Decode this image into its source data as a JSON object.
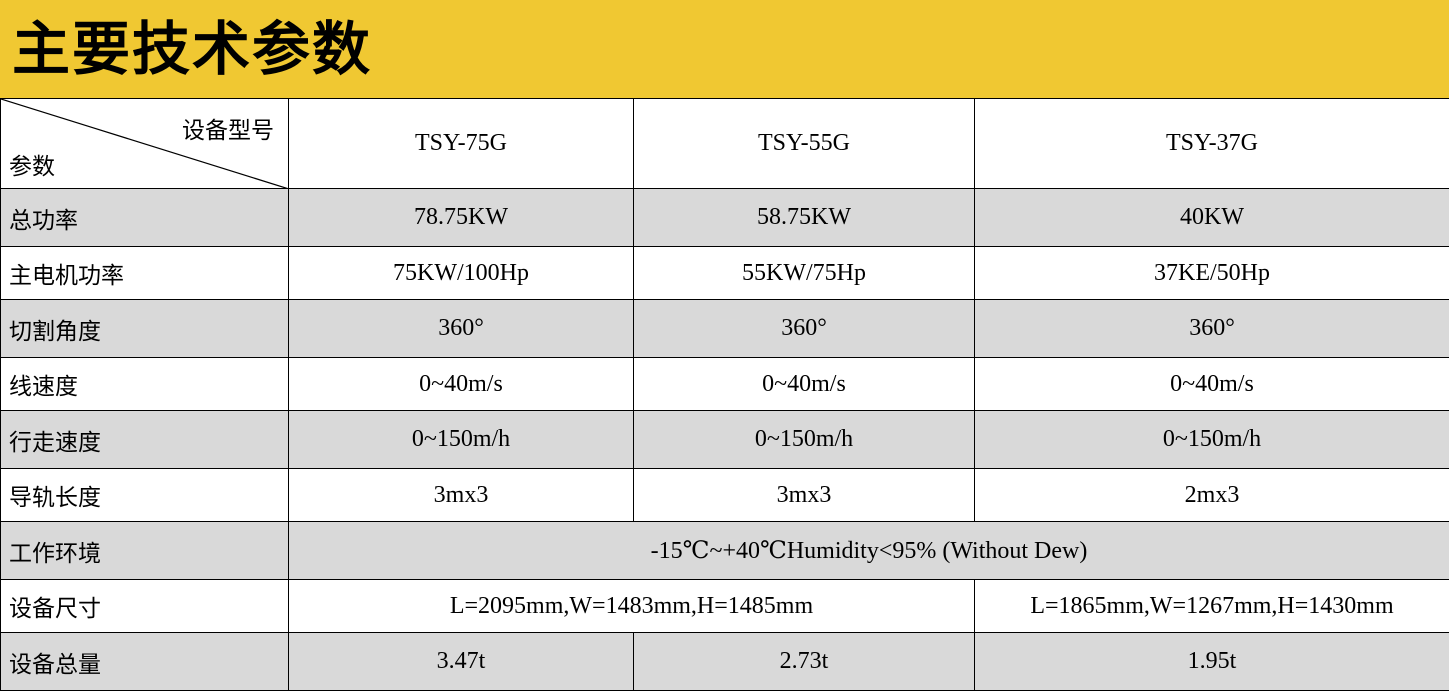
{
  "title": "主要技术参数",
  "colors": {
    "banner": "#F0C832",
    "row_alt": "#D9D9D9"
  },
  "header": {
    "corner_top": "设备型号",
    "corner_bottom": "参数",
    "models": [
      "TSY-75G",
      "TSY-55G",
      "TSY-37G"
    ]
  },
  "rows": [
    {
      "label": "总功率",
      "values": [
        "78.75KW",
        "58.75KW",
        "40KW"
      ]
    },
    {
      "label": "主电机功率",
      "values": [
        "75KW/100Hp",
        "55KW/75Hp",
        "37KE/50Hp"
      ]
    },
    {
      "label": "切割角度",
      "values": [
        "360°",
        "360°",
        "360°"
      ]
    },
    {
      "label": "线速度",
      "values": [
        "0~40m/s",
        "0~40m/s",
        "0~40m/s"
      ]
    },
    {
      "label": "行走速度",
      "values": [
        "0~150m/h",
        "0~150m/h",
        "0~150m/h"
      ]
    },
    {
      "label": "导轨长度",
      "values": [
        "3mx3",
        "3mx3",
        "2mx3"
      ]
    },
    {
      "label": "工作环境",
      "values": [
        "-15℃~+40℃Humidity<95% (Without Dew)"
      ]
    },
    {
      "label": "设备尺寸",
      "values": [
        "L=2095mm,W=1483mm,H=1485mm",
        "L=1865mm,W=1267mm,H=1430mm"
      ]
    },
    {
      "label": "设备总量",
      "values": [
        "3.47t",
        "2.73t",
        "1.95t"
      ]
    }
  ]
}
